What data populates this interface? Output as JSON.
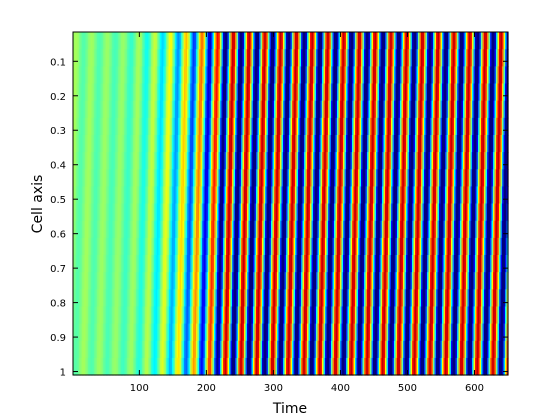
{
  "chart_data": {
    "type": "heatmap",
    "title": "",
    "xlabel": "Time",
    "ylabel": "Cell axis",
    "xlim": [
      1,
      650
    ],
    "ylim": [
      0.015,
      1.01
    ],
    "y_reversed": true,
    "colormap": "jet",
    "colorbar": false,
    "grid": false,
    "xticks": [
      100,
      200,
      300,
      400,
      500,
      600
    ],
    "yticks": [
      0.1,
      0.2,
      0.3,
      0.4,
      0.5,
      0.6,
      0.7,
      0.8,
      0.9,
      1
    ],
    "ytick_labels": [
      "0.1",
      "0.2",
      "0.3",
      "0.4",
      "0.5",
      "0.6",
      "0.7",
      "0.8",
      "0.9",
      "1"
    ],
    "pattern": {
      "description_of_values": "traveling wave along cell axis: oscillation with growing amplitude",
      "period": 23.5,
      "baseline_level": 0.44,
      "amplitude_start_time": 60,
      "amplitude_full_time": 230,
      "phase_tilt_over_axis": 0.55
    }
  }
}
